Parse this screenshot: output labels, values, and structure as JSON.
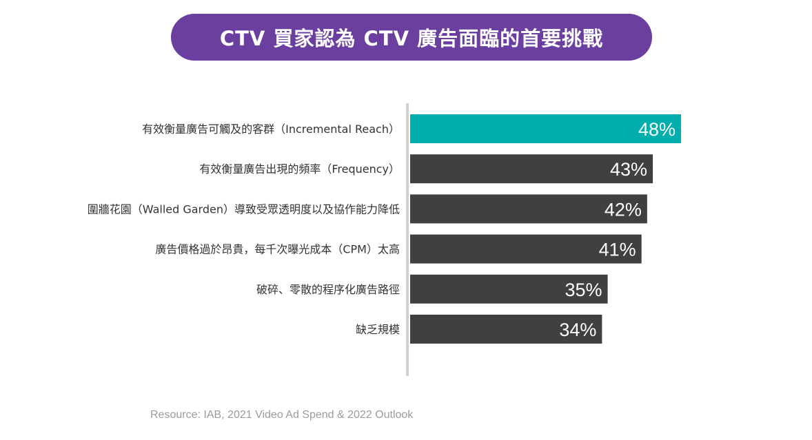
{
  "title": "CTV 買家認為 CTV 廣告面臨的首要挑戰",
  "source": "Resource: IAB, 2021 Video Ad Spend & 2022 Outlook",
  "colors": {
    "title_bg": "#6b3fa0",
    "highlight": "#00aeae",
    "bar": "#404040",
    "axis": "#cfcfcf"
  },
  "chart_data": {
    "type": "bar",
    "orientation": "horizontal",
    "title": "CTV 買家認為 CTV 廣告面臨的首要挑戰",
    "categories": [
      "有效衡量廣告可觸及的客群（Incremental Reach）",
      "有效衡量廣告出現的頻率（Frequency）",
      "圍牆花園（Walled Garden）導致受眾透明度以及協作能力降低",
      "廣告價格過於昂貴，每千次曝光成本（CPM）太高",
      "破碎、零散的程序化廣告路徑",
      "缺乏規模"
    ],
    "values": [
      48,
      43,
      42,
      41,
      35,
      34
    ],
    "data_labels": [
      "48%",
      "43%",
      "42%",
      "41%",
      "35%",
      "34%"
    ],
    "unit": "%",
    "highlight_index": 0,
    "xlim": [
      0,
      48
    ],
    "grid": false
  }
}
